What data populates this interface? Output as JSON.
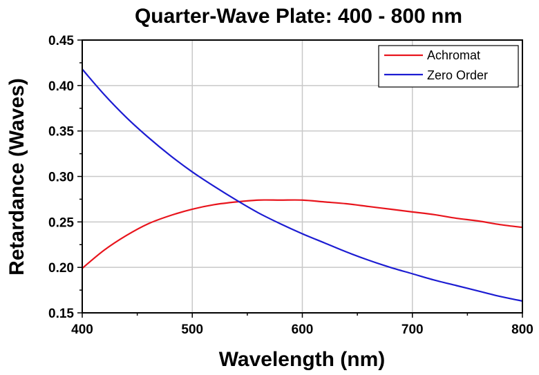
{
  "chart_data": {
    "type": "line",
    "title": "Quarter-Wave Plate: 400 - 800 nm",
    "xlabel": "Wavelength (nm)",
    "ylabel": "Retardance (Waves)",
    "xlim": [
      400,
      800
    ],
    "ylim": [
      0.15,
      0.45
    ],
    "xticks": [
      400,
      500,
      600,
      700,
      800
    ],
    "xtick_labels": [
      "400",
      "500",
      "600",
      "700",
      "800"
    ],
    "yticks": [
      0.15,
      0.2,
      0.25,
      0.3,
      0.35,
      0.4,
      0.45
    ],
    "ytick_labels": [
      "0.15",
      "0.20",
      "0.25",
      "0.30",
      "0.35",
      "0.40",
      "0.45"
    ],
    "grid": true,
    "legend_position": "top-right",
    "series": [
      {
        "name": "Achromat",
        "color": "#e8141c",
        "x": [
          400,
          420,
          440,
          460,
          480,
          500,
          520,
          540,
          560,
          580,
          600,
          620,
          640,
          660,
          680,
          700,
          720,
          740,
          760,
          780,
          800
        ],
        "y": [
          0.199,
          0.219,
          0.235,
          0.248,
          0.257,
          0.264,
          0.269,
          0.272,
          0.274,
          0.274,
          0.274,
          0.272,
          0.27,
          0.267,
          0.264,
          0.261,
          0.258,
          0.254,
          0.251,
          0.247,
          0.244
        ]
      },
      {
        "name": "Zero Order",
        "color": "#1c1cd2",
        "x": [
          400,
          420,
          440,
          460,
          480,
          500,
          520,
          540,
          560,
          580,
          600,
          620,
          640,
          660,
          680,
          700,
          720,
          740,
          760,
          780,
          800
        ],
        "y": [
          0.418,
          0.39,
          0.365,
          0.343,
          0.323,
          0.305,
          0.289,
          0.274,
          0.26,
          0.248,
          0.237,
          0.227,
          0.217,
          0.208,
          0.2,
          0.193,
          0.186,
          0.18,
          0.174,
          0.168,
          0.163
        ]
      }
    ]
  }
}
